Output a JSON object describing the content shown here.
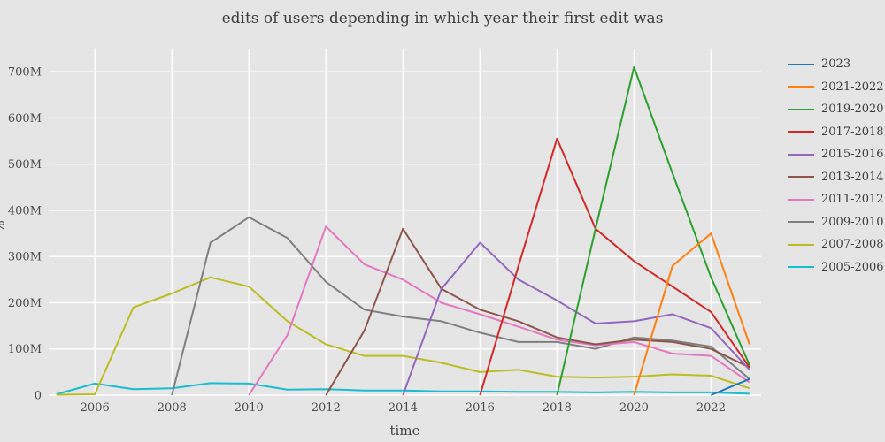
{
  "chart_data": {
    "type": "line",
    "title": "edits of users depending in which year their first edit was",
    "xlabel": "time",
    "ylabel": "%",
    "grid": true,
    "legend_position": "right",
    "x_range_years": [
      2004.8,
      2023.3
    ],
    "y_range_millions": [
      0,
      750
    ],
    "x_ticks": [
      2006,
      2008,
      2010,
      2012,
      2014,
      2016,
      2018,
      2020,
      2022
    ],
    "y_ticks": [
      {
        "value": 0,
        "label": "0"
      },
      {
        "value": 100,
        "label": "100M"
      },
      {
        "value": 200,
        "label": "200M"
      },
      {
        "value": 300,
        "label": "300M"
      },
      {
        "value": 400,
        "label": "400M"
      },
      {
        "value": 500,
        "label": "500M"
      },
      {
        "value": 600,
        "label": "600M"
      },
      {
        "value": 700,
        "label": "700M"
      }
    ],
    "value_unit_label": "M",
    "series": [
      {
        "name": "2023",
        "color": "#1f77b4",
        "points": [
          [
            2022,
            0
          ],
          [
            2023,
            35
          ]
        ]
      },
      {
        "name": "2021-2022",
        "color": "#ff7f0e",
        "points": [
          [
            2020,
            0
          ],
          [
            2021,
            280
          ],
          [
            2022,
            350
          ],
          [
            2023,
            110
          ]
        ]
      },
      {
        "name": "2019-2020",
        "color": "#2ca02c",
        "points": [
          [
            2018,
            0
          ],
          [
            2019,
            360
          ],
          [
            2020,
            710
          ],
          [
            2021,
            480
          ],
          [
            2022,
            255
          ],
          [
            2023,
            65
          ]
        ]
      },
      {
        "name": "2017-2018",
        "color": "#d62728",
        "points": [
          [
            2016,
            0
          ],
          [
            2017,
            280
          ],
          [
            2018,
            555
          ],
          [
            2019,
            360
          ],
          [
            2020,
            290
          ],
          [
            2021,
            235
          ],
          [
            2022,
            180
          ],
          [
            2023,
            60
          ]
        ]
      },
      {
        "name": "2015-2016",
        "color": "#9467bd",
        "points": [
          [
            2014,
            0
          ],
          [
            2015,
            230
          ],
          [
            2016,
            330
          ],
          [
            2017,
            250
          ],
          [
            2018,
            205
          ],
          [
            2019,
            155
          ],
          [
            2020,
            160
          ],
          [
            2021,
            175
          ],
          [
            2022,
            145
          ],
          [
            2023,
            55
          ]
        ]
      },
      {
        "name": "2013-2014",
        "color": "#8c564b",
        "points": [
          [
            2012,
            0
          ],
          [
            2013,
            140
          ],
          [
            2014,
            360
          ],
          [
            2015,
            230
          ],
          [
            2016,
            185
          ],
          [
            2017,
            160
          ],
          [
            2018,
            125
          ],
          [
            2019,
            110
          ],
          [
            2020,
            120
          ],
          [
            2021,
            115
          ],
          [
            2022,
            100
          ],
          [
            2023,
            60
          ]
        ]
      },
      {
        "name": "2011-2012",
        "color": "#e377c2",
        "points": [
          [
            2010,
            0
          ],
          [
            2011,
            130
          ],
          [
            2012,
            365
          ],
          [
            2013,
            283
          ],
          [
            2014,
            250
          ],
          [
            2015,
            200
          ],
          [
            2016,
            175
          ],
          [
            2017,
            148
          ],
          [
            2018,
            120
          ],
          [
            2019,
            108
          ],
          [
            2020,
            115
          ],
          [
            2021,
            90
          ],
          [
            2022,
            85
          ],
          [
            2023,
            28
          ]
        ]
      },
      {
        "name": "2009-2010",
        "color": "#7f7f7f",
        "points": [
          [
            2008,
            0
          ],
          [
            2009,
            330
          ],
          [
            2010,
            385
          ],
          [
            2011,
            340
          ],
          [
            2012,
            245
          ],
          [
            2013,
            185
          ],
          [
            2014,
            170
          ],
          [
            2015,
            160
          ],
          [
            2016,
            135
          ],
          [
            2017,
            115
          ],
          [
            2018,
            115
          ],
          [
            2019,
            100
          ],
          [
            2020,
            125
          ],
          [
            2021,
            118
          ],
          [
            2022,
            105
          ],
          [
            2023,
            35
          ]
        ]
      },
      {
        "name": "2007-2008",
        "color": "#bcbd22",
        "points": [
          [
            2005,
            1
          ],
          [
            2006,
            2
          ],
          [
            2007,
            190
          ],
          [
            2008,
            220
          ],
          [
            2009,
            255
          ],
          [
            2010,
            235
          ],
          [
            2011,
            160
          ],
          [
            2012,
            110
          ],
          [
            2013,
            85
          ],
          [
            2014,
            85
          ],
          [
            2015,
            70
          ],
          [
            2016,
            50
          ],
          [
            2017,
            55
          ],
          [
            2018,
            40
          ],
          [
            2019,
            38
          ],
          [
            2020,
            40
          ],
          [
            2021,
            45
          ],
          [
            2022,
            42
          ],
          [
            2023,
            15
          ]
        ]
      },
      {
        "name": "2005-2006",
        "color": "#17becf",
        "points": [
          [
            2005,
            2
          ],
          [
            2006,
            25
          ],
          [
            2007,
            13
          ],
          [
            2008,
            15
          ],
          [
            2009,
            26
          ],
          [
            2010,
            25
          ],
          [
            2011,
            12
          ],
          [
            2012,
            13
          ],
          [
            2013,
            10
          ],
          [
            2014,
            10
          ],
          [
            2015,
            8
          ],
          [
            2016,
            8
          ],
          [
            2017,
            7
          ],
          [
            2018,
            7
          ],
          [
            2019,
            6
          ],
          [
            2020,
            7
          ],
          [
            2021,
            6
          ],
          [
            2022,
            6
          ],
          [
            2023,
            3
          ]
        ]
      }
    ]
  }
}
